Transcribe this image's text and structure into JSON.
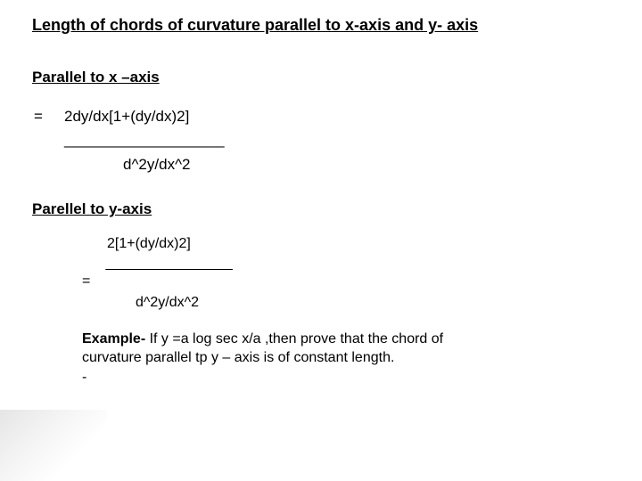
{
  "title": "Length of chords of curvature parallel to x-axis and y- axis",
  "sectionX": {
    "heading": "Parallel to x –axis",
    "equals": "=",
    "numerator": "2dy/dx[1+(dy/dx)2]",
    "divider": "___________________",
    "denominator": "d^2y/dx^2"
  },
  "sectionY": {
    "heading": "Parellel to y-axis",
    "numerator": "2[1+(dy/dx)2]",
    "divider": "________________",
    "equals": "=",
    "denominator": "d^2y/dx^2"
  },
  "example": {
    "label": "Example-",
    "text": " If y =a log sec x/a ,then prove that the chord of curvature parallel tp y – axis is of constant length.",
    "dash": "-"
  },
  "colors": {
    "background": "#ffffff",
    "text": "#000000"
  },
  "fonts": {
    "family": "Arial",
    "title_size": 18,
    "body_size": 17,
    "example_size": 16
  }
}
